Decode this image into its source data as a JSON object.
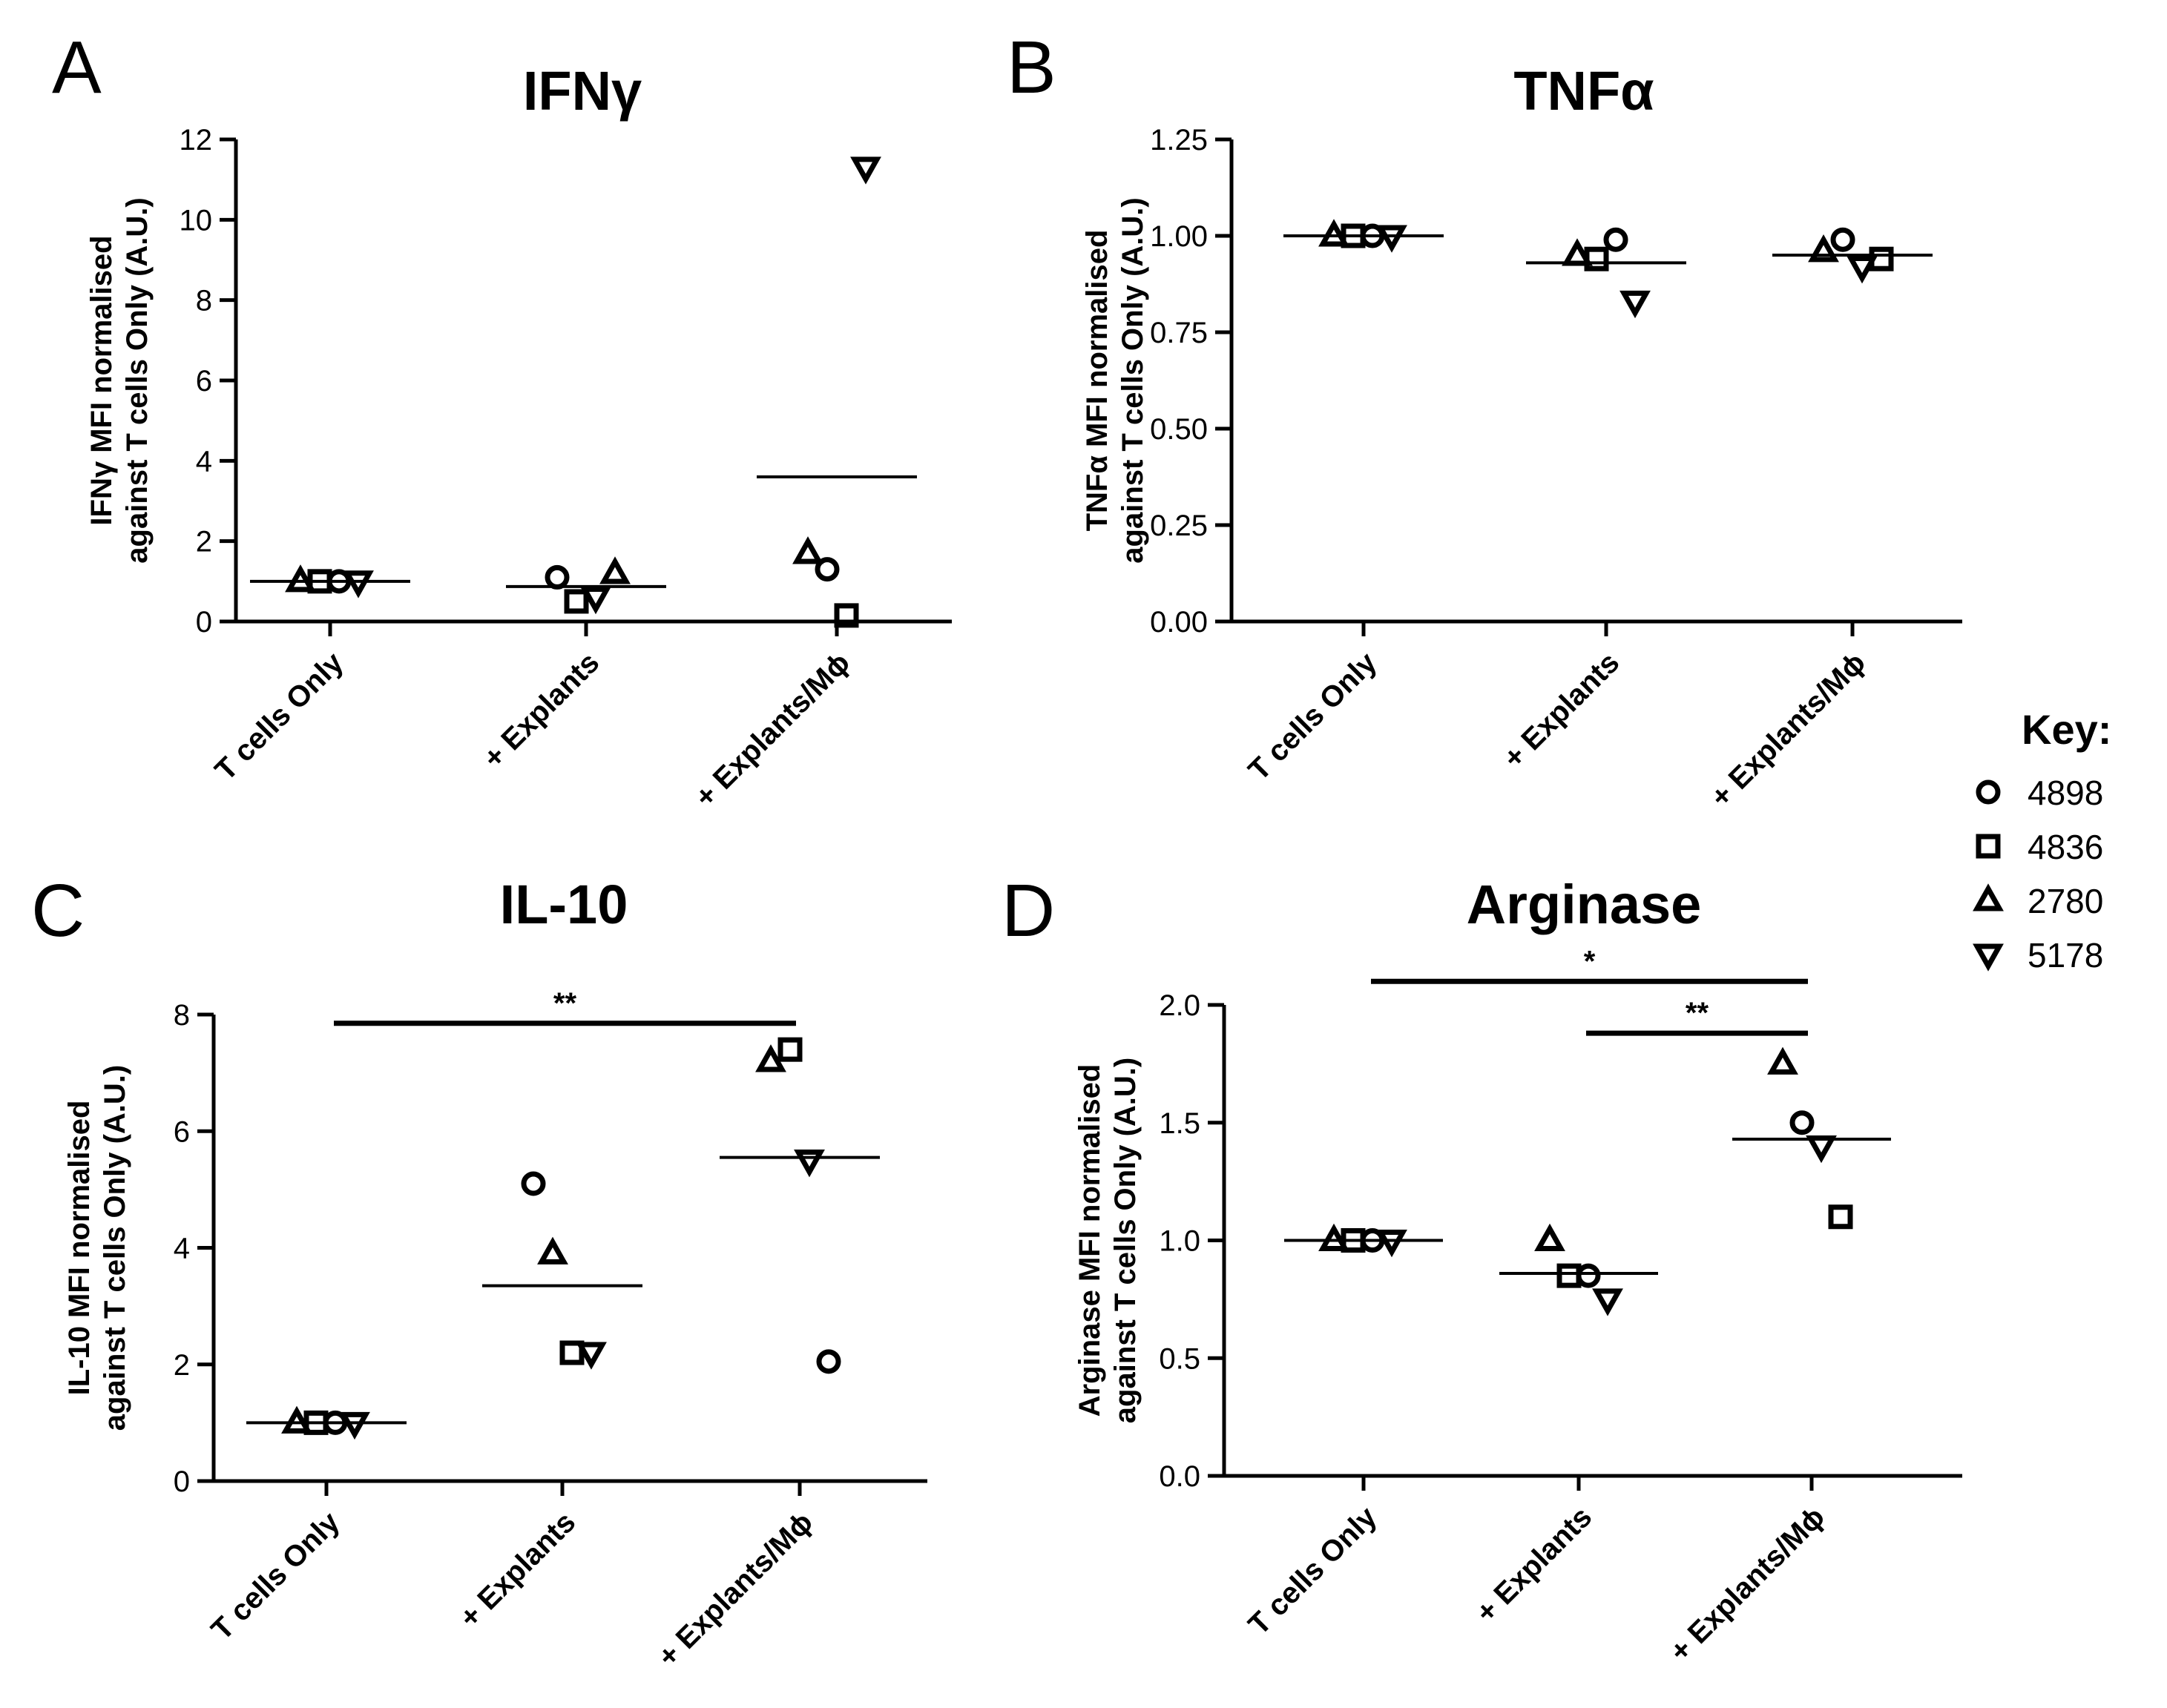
{
  "figure": {
    "categories": [
      "T cells Only",
      "+ Explants",
      "+ Explants/Mϕ"
    ],
    "donors": [
      {
        "id": "4898",
        "symbol": "circle"
      },
      {
        "id": "4836",
        "symbol": "square"
      },
      {
        "id": "2780",
        "symbol": "triangle-up"
      },
      {
        "id": "5178",
        "symbol": "triangle-down"
      }
    ],
    "key_title": "Key:"
  },
  "chart_data": [
    {
      "type": "scatter",
      "panel": "A",
      "title": "IFNγ",
      "ylabel": [
        "IFNγ MFI normalised",
        "against T cells Only (A.U.)"
      ],
      "ylim": [
        0,
        12
      ],
      "ticks": [
        "0",
        "2",
        "4",
        "6",
        "8",
        "10",
        "12"
      ],
      "tick_values": [
        0,
        2,
        4,
        6,
        8,
        10,
        12
      ],
      "points": [
        {
          "donor": "2780",
          "cat": 0,
          "value": 1.0
        },
        {
          "donor": "4836",
          "cat": 0,
          "value": 1.0
        },
        {
          "donor": "4898",
          "cat": 0,
          "value": 1.0
        },
        {
          "donor": "5178",
          "cat": 0,
          "value": 1.0
        },
        {
          "donor": "4898",
          "cat": 1,
          "value": 1.1
        },
        {
          "donor": "4836",
          "cat": 1,
          "value": 0.5
        },
        {
          "donor": "5178",
          "cat": 1,
          "value": 0.6
        },
        {
          "donor": "2780",
          "cat": 1,
          "value": 1.2
        },
        {
          "donor": "2780",
          "cat": 2,
          "value": 1.7
        },
        {
          "donor": "4898",
          "cat": 2,
          "value": 1.3
        },
        {
          "donor": "4836",
          "cat": 2,
          "value": 0.15
        },
        {
          "donor": "5178",
          "cat": 2,
          "value": 11.3
        }
      ],
      "means": [
        1.0,
        0.87,
        3.6
      ],
      "significance": []
    },
    {
      "type": "scatter",
      "panel": "B",
      "title": "TNFα",
      "ylabel": [
        "TNFα MFI normalised",
        "against T cells Only (A.U.)"
      ],
      "ylim": [
        0,
        1.25
      ],
      "ticks": [
        "0.00",
        "0.25",
        "0.50",
        "0.75",
        "1.00",
        "1.25"
      ],
      "tick_values": [
        0,
        0.25,
        0.5,
        0.75,
        1.0,
        1.25
      ],
      "points": [
        {
          "donor": "2780",
          "cat": 0,
          "value": 1.0
        },
        {
          "donor": "4836",
          "cat": 0,
          "value": 1.0
        },
        {
          "donor": "4898",
          "cat": 0,
          "value": 1.0
        },
        {
          "donor": "5178",
          "cat": 0,
          "value": 1.0
        },
        {
          "donor": "2780",
          "cat": 1,
          "value": 0.95
        },
        {
          "donor": "4836",
          "cat": 1,
          "value": 0.94
        },
        {
          "donor": "4898",
          "cat": 1,
          "value": 0.99
        },
        {
          "donor": "5178",
          "cat": 1,
          "value": 0.83
        },
        {
          "donor": "2780",
          "cat": 2,
          "value": 0.96
        },
        {
          "donor": "4898",
          "cat": 2,
          "value": 0.99
        },
        {
          "donor": "5178",
          "cat": 2,
          "value": 0.92
        },
        {
          "donor": "4836",
          "cat": 2,
          "value": 0.94
        }
      ],
      "means": [
        1.0,
        0.93,
        0.95
      ],
      "significance": []
    },
    {
      "type": "scatter",
      "panel": "C",
      "title": "IL-10",
      "ylabel": [
        "IL-10 MFI normalised",
        "against T cells Only (A.U.)"
      ],
      "ylim": [
        0,
        8
      ],
      "ticks": [
        "0",
        "2",
        "4",
        "6",
        "8"
      ],
      "tick_values": [
        0,
        2,
        4,
        6,
        8
      ],
      "points": [
        {
          "donor": "2780",
          "cat": 0,
          "value": 1.0
        },
        {
          "donor": "4836",
          "cat": 0,
          "value": 1.0
        },
        {
          "donor": "4898",
          "cat": 0,
          "value": 1.0
        },
        {
          "donor": "5178",
          "cat": 0,
          "value": 1.0
        },
        {
          "donor": "4898",
          "cat": 1,
          "value": 5.1
        },
        {
          "donor": "2780",
          "cat": 1,
          "value": 3.9
        },
        {
          "donor": "4836",
          "cat": 1,
          "value": 2.2
        },
        {
          "donor": "5178",
          "cat": 1,
          "value": 2.2
        },
        {
          "donor": "2780",
          "cat": 2,
          "value": 7.2
        },
        {
          "donor": "4836",
          "cat": 2,
          "value": 7.4
        },
        {
          "donor": "5178",
          "cat": 2,
          "value": 5.5
        },
        {
          "donor": "4898",
          "cat": 2,
          "value": 2.05
        }
      ],
      "means": [
        1.0,
        3.35,
        5.55
      ],
      "significance": [
        {
          "from": 0,
          "to": 2,
          "y": 7.85,
          "label": "**"
        }
      ]
    },
    {
      "type": "scatter",
      "panel": "D",
      "title": "Arginase",
      "ylabel": [
        "Arginase MFI normalised",
        "against T cells Only (A.U.)"
      ],
      "ylim": [
        0,
        2.0
      ],
      "ticks": [
        "0.0",
        "0.5",
        "1.0",
        "1.5",
        "2.0"
      ],
      "tick_values": [
        0,
        0.5,
        1.0,
        1.5,
        2.0
      ],
      "points": [
        {
          "donor": "2780",
          "cat": 0,
          "value": 1.0
        },
        {
          "donor": "4836",
          "cat": 0,
          "value": 1.0
        },
        {
          "donor": "4898",
          "cat": 0,
          "value": 1.0
        },
        {
          "donor": "5178",
          "cat": 0,
          "value": 1.0
        },
        {
          "donor": "2780",
          "cat": 1,
          "value": 1.0
        },
        {
          "donor": "4836",
          "cat": 1,
          "value": 0.85
        },
        {
          "donor": "4898",
          "cat": 1,
          "value": 0.85
        },
        {
          "donor": "5178",
          "cat": 1,
          "value": 0.75
        },
        {
          "donor": "2780",
          "cat": 2,
          "value": 1.75
        },
        {
          "donor": "4898",
          "cat": 2,
          "value": 1.5
        },
        {
          "donor": "5178",
          "cat": 2,
          "value": 1.4
        },
        {
          "donor": "4836",
          "cat": 2,
          "value": 1.1
        }
      ],
      "means": [
        1.0,
        0.86,
        1.43
      ],
      "significance": [
        {
          "from": 0,
          "to": 2,
          "y": 2.1,
          "label": "*"
        },
        {
          "from": 1,
          "to": 2,
          "y": 1.88,
          "label": "**"
        }
      ]
    }
  ]
}
